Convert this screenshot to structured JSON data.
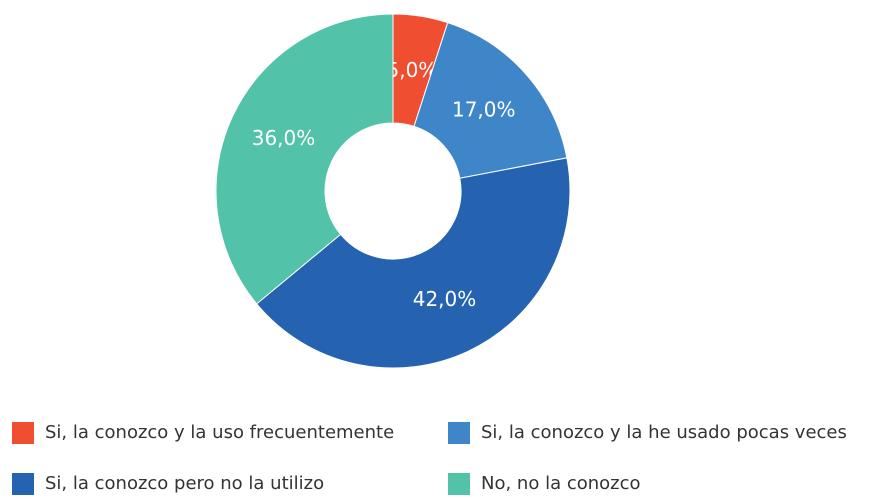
{
  "chart_data": {
    "type": "donut",
    "categories": [
      "Si, la conozco y la uso frecuentemente",
      "Si, la conozco y la he usado pocas veces",
      "Si, la conozco pero no la utilizo",
      "No, no la conozco"
    ],
    "values": [
      5,
      17,
      42,
      36
    ],
    "value_labels": [
      "5,0%",
      "17,0%",
      "42,0%",
      "36,0%"
    ],
    "colors": [
      "#f04e31",
      "#3f86c9",
      "#2563b1",
      "#52c3a8"
    ],
    "legend": "bottom"
  }
}
